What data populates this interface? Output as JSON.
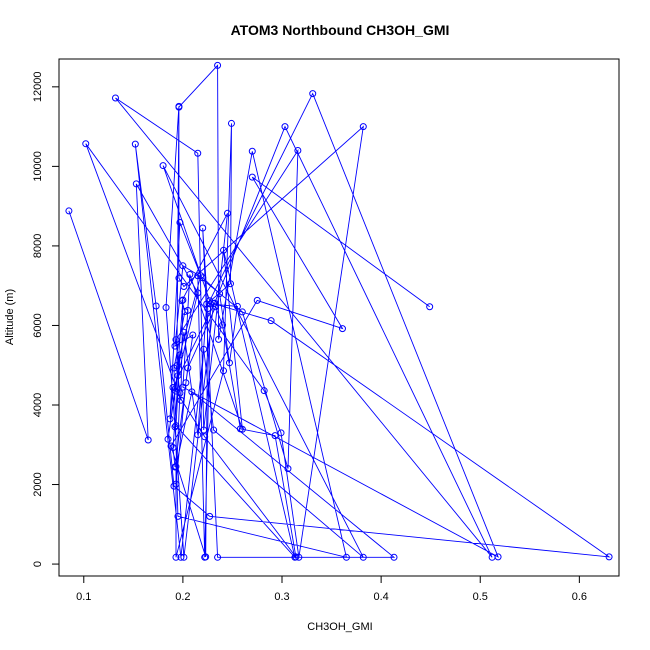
{
  "chart_data": {
    "type": "scatter",
    "title": "ATOM3 Northbound CH3OH_GMI",
    "xlabel": "CH3OH_GMI",
    "ylabel": "Altitude (m)",
    "xlim": [
      0.075,
      0.64
    ],
    "ylim": [
      -300,
      12700
    ],
    "x_ticks": [
      0.1,
      0.2,
      0.3,
      0.4,
      0.5,
      0.6
    ],
    "x_tick_labels": [
      "0.1",
      "0.2",
      "0.3",
      "0.4",
      "0.5",
      "0.6"
    ],
    "y_ticks": [
      0,
      2000,
      4000,
      6000,
      8000,
      10000,
      12000
    ],
    "y_tick_labels": [
      "0",
      "2000",
      "4000",
      "6000",
      "8000",
      "10000",
      "12000"
    ],
    "grid": false,
    "legend": "none",
    "series_color": "#0000ff",
    "markers": "open-circle",
    "connected": true,
    "series": [
      {
        "x": [
          0.085,
          0.165,
          0.153,
          0.215,
          0.195,
          0.197,
          0.193,
          0.203,
          0.21,
          0.192,
          0.2,
          0.22,
          0.237,
          0.247,
          0.255,
          0.228,
          0.222,
          0.215,
          0.26,
          0.306,
          0.316,
          0.193,
          0.196,
          0.19,
          0.192,
          0.205,
          0.233,
          0.24,
          0.258,
          0.293,
          0.314,
          0.222,
          0.193,
          0.2,
          0.198,
          0.102,
          0.282,
          0.299,
          0.317,
          0.382,
          0.201,
          0.196,
          0.196,
          0.235,
          0.236,
          0.27,
          0.365,
          0.195,
          0.191,
          0.202,
          0.199,
          0.245,
          0.221,
          0.215,
          0.132,
          0.512,
          0.303,
          0.232,
          0.19,
          0.187,
          0.197,
          0.218,
          0.194,
          0.196,
          0.183,
          0.192,
          0.201,
          0.231,
          0.289,
          0.63,
          0.227,
          0.191,
          0.173,
          0.152,
          0.198,
          0.221,
          0.231,
          0.382,
          0.18,
          0.227,
          0.331,
          0.518,
          0.2,
          0.205,
          0.207,
          0.26,
          0.241,
          0.313,
          0.193,
          0.197,
          0.185,
          0.201,
          0.215,
          0.224,
          0.248,
          0.249,
          0.241,
          0.193,
          0.193,
          0.209,
          0.413,
          0.235,
          0.22,
          0.225,
          0.223,
          0.188,
          0.275,
          0.361,
          0.27,
          0.449
        ],
        "y": [
          8880,
          3120,
          9560,
          6820,
          4740,
          4300,
          2010,
          4560,
          5760,
          5480,
          7500,
          7200,
          6800,
          5060,
          6480,
          6540,
          170,
          7250,
          6340,
          2400,
          10400,
          5640,
          4900,
          2930,
          2440,
          4930,
          6470,
          6010,
          3400,
          3230,
          180,
          3200,
          4350,
          6640,
          4120,
          10570,
          4360,
          3300,
          170,
          11000,
          6980,
          7190,
          11490,
          12540,
          5650,
          10380,
          170,
          1200,
          4930,
          6350,
          6620,
          8820,
          3370,
          10330,
          11720,
          170,
          11000,
          6560,
          4440,
          3650,
          8590,
          7250,
          4990,
          11510,
          6450,
          3450,
          170,
          6550,
          6120,
          180,
          1200,
          1960,
          6490,
          10560,
          170,
          5400,
          3370,
          170,
          10020,
          6620,
          11830,
          180,
          4450,
          6380,
          7280,
          3390,
          7890,
          170,
          3480,
          5260,
          3140,
          5830,
          3250,
          6540,
          7050,
          11080,
          4860,
          170,
          2450,
          4330,
          170,
          170,
          8450,
          6420,
          180,
          2970,
          6630,
          5920,
          9730,
          6470
        ]
      }
    ]
  }
}
